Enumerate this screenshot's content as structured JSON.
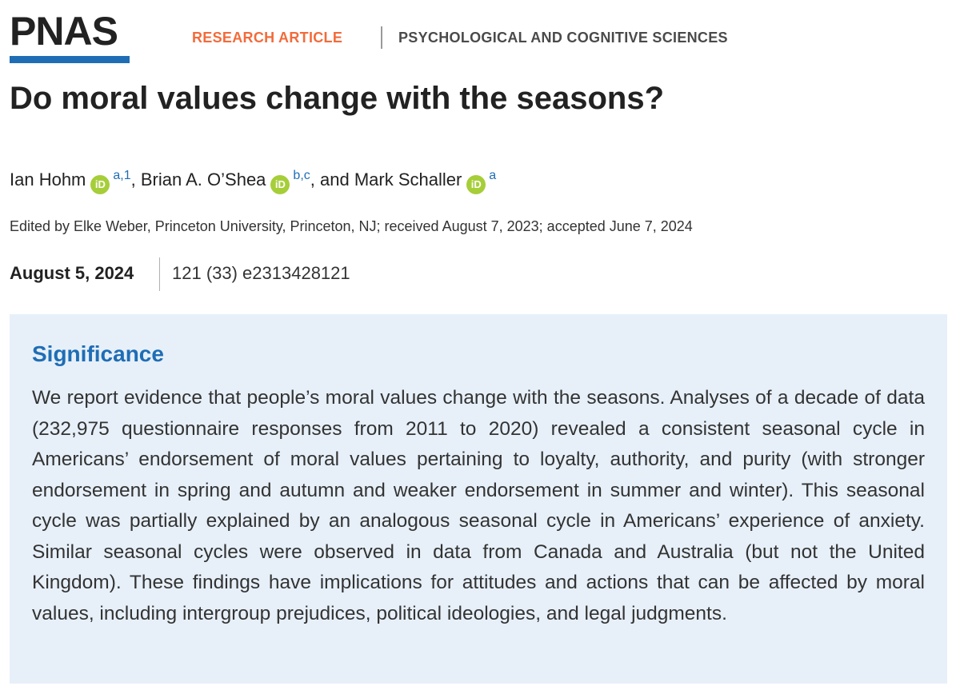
{
  "journal": {
    "logo_text": "PNAS",
    "brand_color": "#1f6db5",
    "article_type": "RESEARCH ARTICLE",
    "article_type_color": "#f26b3a",
    "section": "PSYCHOLOGICAL AND COGNITIVE SCIENCES"
  },
  "article": {
    "title": "Do moral values change with the seasons?",
    "authors": [
      {
        "name": "Ian Hohm",
        "affiliation": "a,1",
        "orcid_icon": "iD"
      },
      {
        "name": "Brian A. O’Shea",
        "affiliation": "b,c",
        "orcid_icon": "iD"
      },
      {
        "name": "Mark Schaller",
        "affiliation": "a",
        "orcid_icon": "iD"
      }
    ],
    "author_separators": [
      ", ",
      ", and "
    ],
    "edited_by": "Edited by Elke Weber, Princeton University, Princeton, NJ; received August 7, 2023; accepted June 7, 2024",
    "pub_date": "August 5, 2024",
    "citation": "121 (33) e2313428121"
  },
  "significance": {
    "heading": "Significance",
    "body": "We report evidence that people’s moral values change with the seasons. Analyses of a decade of data (232,975 questionnaire responses from 2011 to 2020) revealed a consistent seasonal cycle in Americans’ endorsement of moral values pertaining to loyalty, authority, and purity (with stronger endorsement in spring and autumn and weaker endorsement in summer and winter). This seasonal cycle was partially explained by an analogous seasonal cycle in Americans’ experience of anxiety. Similar seasonal cycles were observed in data from Canada and Australia (but not the United Kingdom). These findings have implications for attitudes and actions that can be affected by moral values, including intergroup prejudices, political ideologies, and legal judgments."
  },
  "colors": {
    "orcid_green": "#a6ce39",
    "significance_bg": "#e7f0f9"
  }
}
